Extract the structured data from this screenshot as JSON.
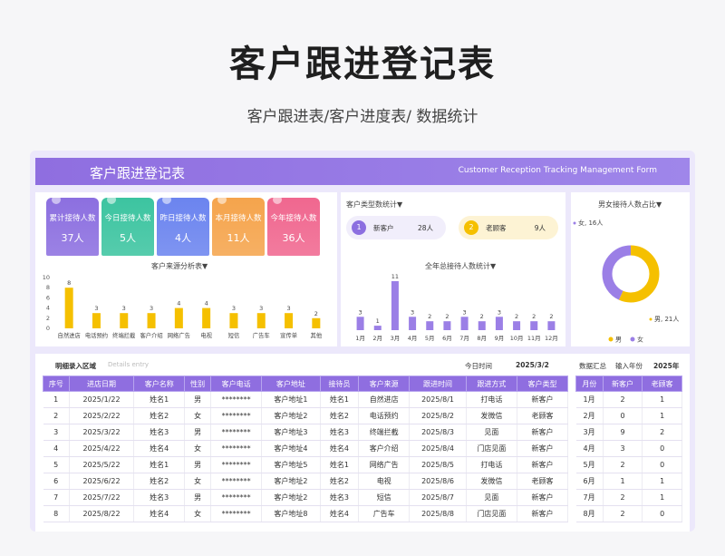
{
  "page": {
    "title": "客户跟进登记表",
    "subtitle": "客户跟进表/客户进度表/ 数据统计"
  },
  "banner": {
    "title": "客户跟进登记表",
    "en": "Customer Reception Tracking Management Form"
  },
  "kpis": [
    {
      "label": "累计接待人数",
      "value": "37人",
      "color": "#8c6fe0"
    },
    {
      "label": "今日接待人数",
      "value": "5人",
      "color": "#3cc4a0"
    },
    {
      "label": "昨日接待人数",
      "value": "4人",
      "color": "#6b84ef"
    },
    {
      "label": "本月接待人数",
      "value": "11人",
      "color": "#f5a44c"
    },
    {
      "label": "今年接待人数",
      "value": "36人",
      "color": "#f0678f"
    }
  ],
  "source_chart": {
    "title": "客户来源分析表▼",
    "chart_data": {
      "type": "bar",
      "categories": [
        "自然进店",
        "电话预约",
        "终端拦截",
        "客户介绍",
        "网络广告",
        "电视",
        "短信",
        "广告车",
        "宣传单",
        "其他"
      ],
      "values": [
        8,
        3,
        3,
        3,
        4,
        4,
        3,
        3,
        3,
        2
      ],
      "ylim": [
        0,
        10
      ],
      "yticks": [
        0,
        2,
        4,
        6,
        8,
        10
      ],
      "color": "#f5c000"
    }
  },
  "customer_type": {
    "title": "客户类型数统计▼",
    "items": [
      {
        "index": "1",
        "name": "新客户",
        "count": "28人",
        "bg": "#f1eefb",
        "circle": "#8c6fe0"
      },
      {
        "index": "2",
        "name": "老顾客",
        "count": "9人",
        "bg": "#fdf3d4",
        "circle": "#f5c000"
      }
    ]
  },
  "monthly_chart": {
    "title": "全年总接待人数统计▼",
    "chart_data": {
      "type": "bar",
      "categories": [
        "1月",
        "2月",
        "3月",
        "4月",
        "5月",
        "6月",
        "7月",
        "8月",
        "9月",
        "10月",
        "11月",
        "12月"
      ],
      "values": [
        3,
        1,
        11,
        3,
        2,
        2,
        3,
        2,
        3,
        2,
        2,
        2
      ],
      "color": "#9b7fe6"
    }
  },
  "gender_chart": {
    "title": "男女接待人数占比▼",
    "chart_data": {
      "type": "pie",
      "labels": [
        "男",
        "女"
      ],
      "values": [
        21,
        16
      ],
      "colors": [
        "#f5c000",
        "#9b7fe6"
      ],
      "data_labels": [
        "男, 21人",
        "女, 16人"
      ]
    },
    "legend": [
      "男",
      "女"
    ]
  },
  "detail": {
    "section_label": "明细录入区域",
    "section_en": "Details entry",
    "today_label": "今日时间",
    "today_value": "2025/3/2",
    "columns": [
      "序号",
      "进店日期",
      "客户名称",
      "性别",
      "客户电话",
      "客户地址",
      "接待员",
      "客户来源",
      "跟进时间",
      "跟进方式",
      "客户类型"
    ],
    "rows": [
      [
        "1",
        "2025/1/22",
        "姓名1",
        "男",
        "********",
        "客户地址1",
        "姓名1",
        "自然进店",
        "2025/8/1",
        "打电话",
        "新客户"
      ],
      [
        "2",
        "2025/2/22",
        "姓名2",
        "女",
        "********",
        "客户地址2",
        "姓名2",
        "电话预约",
        "2025/8/2",
        "发微信",
        "老顾客"
      ],
      [
        "3",
        "2025/3/22",
        "姓名3",
        "男",
        "********",
        "客户地址3",
        "姓名3",
        "终端拦截",
        "2025/8/3",
        "见面",
        "新客户"
      ],
      [
        "4",
        "2025/4/22",
        "姓名4",
        "女",
        "********",
        "客户地址4",
        "姓名4",
        "客户介绍",
        "2025/8/4",
        "门店见面",
        "新客户"
      ],
      [
        "5",
        "2025/5/22",
        "姓名1",
        "男",
        "********",
        "客户地址5",
        "姓名1",
        "网络广告",
        "2025/8/5",
        "打电话",
        "新客户"
      ],
      [
        "6",
        "2025/6/22",
        "姓名2",
        "女",
        "********",
        "客户地址2",
        "姓名2",
        "电视",
        "2025/8/6",
        "发微信",
        "老顾客"
      ],
      [
        "7",
        "2025/7/22",
        "姓名3",
        "男",
        "********",
        "客户地址2",
        "姓名3",
        "短信",
        "2025/8/7",
        "见面",
        "新客户"
      ],
      [
        "8",
        "2025/8/22",
        "姓名4",
        "女",
        "********",
        "客户地址8",
        "姓名4",
        "广告车",
        "2025/8/8",
        "门店见面",
        "新客户"
      ]
    ]
  },
  "summary": {
    "label": "数据汇总",
    "year_label": "输入年份",
    "year_value": "2025年",
    "columns": [
      "月份",
      "新客户",
      "老顾客"
    ],
    "rows": [
      [
        "1月",
        "2",
        "1"
      ],
      [
        "2月",
        "0",
        "1"
      ],
      [
        "3月",
        "9",
        "2"
      ],
      [
        "4月",
        "3",
        "0"
      ],
      [
        "5月",
        "2",
        "0"
      ],
      [
        "6月",
        "1",
        "1"
      ],
      [
        "7月",
        "2",
        "1"
      ],
      [
        "8月",
        "2",
        "0"
      ]
    ]
  }
}
